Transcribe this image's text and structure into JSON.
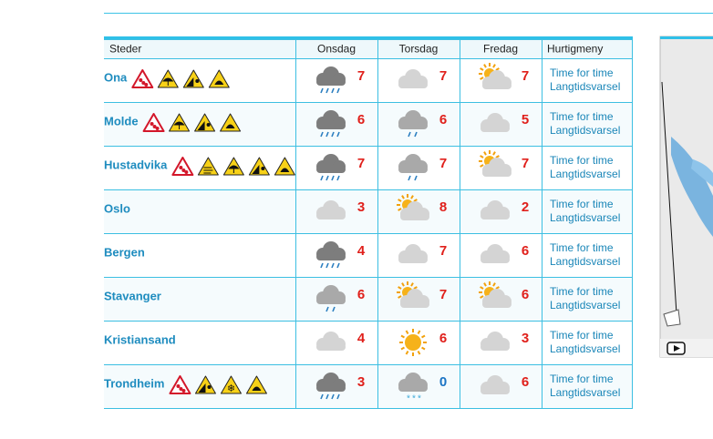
{
  "table": {
    "headers": [
      "Steder",
      "Onsdag",
      "Torsdag",
      "Fredag",
      "Hurtigmeny"
    ],
    "rows": [
      {
        "place": "Ona",
        "temps": [
          7,
          7,
          7
        ],
        "links": [
          "Time for time",
          "Langtidsvarsel"
        ]
      },
      {
        "place": "Molde",
        "temps": [
          6,
          6,
          5
        ],
        "links": [
          "Time for time",
          "Langtidsvarsel"
        ]
      },
      {
        "place": "Hustadvika",
        "temps": [
          7,
          7,
          7
        ],
        "links": [
          "Time for time",
          "Langtidsvarsel"
        ]
      },
      {
        "place": "Oslo",
        "temps": [
          3,
          8,
          2
        ],
        "links": [
          "Time for time",
          "Langtidsvarsel"
        ]
      },
      {
        "place": "Bergen",
        "temps": [
          4,
          7,
          6
        ],
        "links": [
          "Time for time",
          "Langtidsvarsel"
        ]
      },
      {
        "place": "Stavanger",
        "temps": [
          6,
          7,
          6
        ],
        "links": [
          "Time for time",
          "Langtidsvarsel"
        ]
      },
      {
        "place": "Kristiansand",
        "temps": [
          4,
          6,
          3
        ],
        "links": [
          "Time for time",
          "Langtidsvarsel"
        ]
      },
      {
        "place": "Trondheim",
        "temps": [
          3,
          0,
          6
        ],
        "links": [
          "Time for time",
          "Langtidsvarsel"
        ]
      }
    ]
  }
}
